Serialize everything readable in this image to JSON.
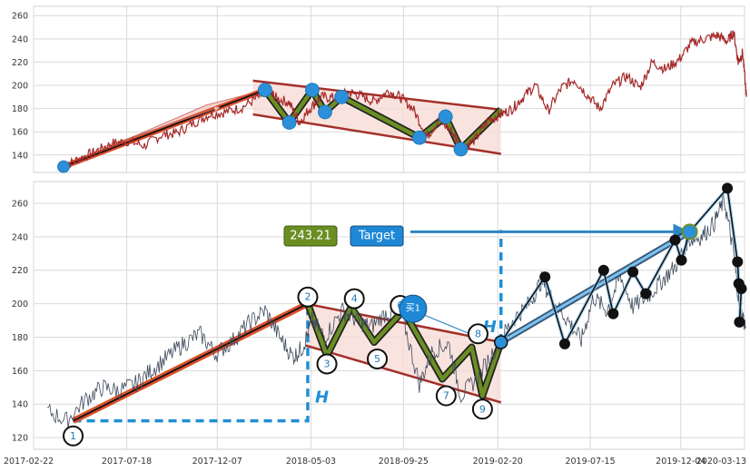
{
  "chart_data": [
    {
      "type": "line",
      "title": "",
      "xlabel": "",
      "ylabel": "",
      "ylim": [
        125,
        268
      ],
      "yticks": [
        140,
        160,
        180,
        200,
        220,
        240,
        260
      ],
      "grid": true,
      "series": [
        {
          "color": "#a52a2a",
          "x": [
            "2017-04-10",
            "2017-05-05",
            "2017-05-30",
            "2017-06-25",
            "2017-07-20",
            "2017-08-15",
            "2017-09-10",
            "2017-10-05",
            "2017-11-01",
            "2017-11-25",
            "2017-12-20",
            "2018-01-15",
            "2018-02-10",
            "2018-02-25",
            "2018-03-10",
            "2018-03-30",
            "2018-04-15",
            "2018-05-01",
            "2018-05-20",
            "2018-06-10",
            "2018-07-01",
            "2018-07-20",
            "2018-08-10",
            "2018-09-01",
            "2018-09-20",
            "2018-10-10",
            "2018-11-01",
            "2018-11-20",
            "2018-12-10",
            "2018-12-25",
            "2019-01-15",
            "2019-02-05",
            "2019-02-25",
            "2019-03-15",
            "2019-04-01",
            "2019-04-20",
            "2019-05-10",
            "2019-05-31",
            "2019-06-20",
            "2019-07-10",
            "2019-07-30",
            "2019-08-20",
            "2019-09-10",
            "2019-10-01",
            "2019-10-20",
            "2019-11-10",
            "2019-12-01",
            "2019-12-20",
            "2020-01-10",
            "2020-01-30",
            "2020-02-15",
            "2020-02-25",
            "2020-03-03",
            "2020-03-10",
            "2020-03-16"
          ],
          "y": [
            130,
            137,
            143,
            150,
            152,
            148,
            157,
            159,
            168,
            175,
            177,
            181,
            190,
            196,
            189,
            185,
            168,
            180,
            190,
            189,
            194,
            191,
            186,
            195,
            190,
            180,
            156,
            170,
            160,
            146,
            153,
            170,
            175,
            180,
            190,
            200,
            178,
            198,
            205,
            192,
            180,
            200,
            208,
            198,
            220,
            214,
            222,
            236,
            240,
            243,
            238,
            246,
            220,
            228,
            190
          ]
        }
      ],
      "annotations": {
        "points": [
          {
            "x": "2017-04-10",
            "y": 130
          },
          {
            "x": "2018-02-20",
            "y": 196
          },
          {
            "x": "2018-03-30",
            "y": 168
          },
          {
            "x": "2018-05-05",
            "y": 196
          },
          {
            "x": "2018-05-25",
            "y": 177
          },
          {
            "x": "2018-06-20",
            "y": 190
          },
          {
            "x": "2018-10-20",
            "y": 155
          },
          {
            "x": "2018-11-30",
            "y": 173
          },
          {
            "x": "2018-12-24",
            "y": 145
          }
        ],
        "upper_channel": [
          {
            "x": "2018-02-01",
            "y": 204
          },
          {
            "x": "2019-02-25",
            "y": 179
          }
        ],
        "lower_channel": [
          {
            "x": "2018-02-01",
            "y": 175
          },
          {
            "x": "2019-02-25",
            "y": 141
          }
        ]
      },
      "xlim": [
        "2017-02-22",
        "2020-03-13"
      ]
    },
    {
      "type": "line",
      "title": "",
      "xlabel": "",
      "ylabel": "",
      "ylim": [
        113,
        273
      ],
      "yticks": [
        120,
        140,
        160,
        180,
        200,
        220,
        240,
        260
      ],
      "xlim": [
        "2017-02-22",
        "2020-03-13"
      ],
      "xticks": [
        "2017-02-22",
        "2017-07-18",
        "2017-12-07",
        "2018-05-03",
        "2018-09-25",
        "2019-02-20",
        "2019-07-15",
        "2019-12-04",
        "2020-03-13"
      ],
      "grid": true,
      "series": [
        {
          "color": "#3c4a5c",
          "x": [
            "2017-03-15",
            "2017-04-15",
            "2017-05-15",
            "2017-06-10",
            "2017-07-05",
            "2017-08-01",
            "2017-08-25",
            "2017-09-20",
            "2017-10-15",
            "2017-11-10",
            "2017-12-05",
            "2018-01-01",
            "2018-01-25",
            "2018-02-20",
            "2018-03-15",
            "2018-04-05",
            "2018-04-20",
            "2018-05-05",
            "2018-05-25",
            "2018-06-20",
            "2018-07-15",
            "2018-08-05",
            "2018-08-30",
            "2018-09-25",
            "2018-10-20",
            "2018-11-10",
            "2018-12-05",
            "2018-12-24",
            "2019-01-20",
            "2019-02-20",
            "2019-03-15",
            "2019-04-10",
            "2019-04-30",
            "2019-05-20",
            "2019-06-10",
            "2019-07-01",
            "2019-07-20",
            "2019-08-10",
            "2019-08-31",
            "2019-09-20",
            "2019-10-15",
            "2019-11-05",
            "2019-11-25",
            "2019-12-15",
            "2020-01-05",
            "2020-01-25",
            "2020-02-10",
            "2020-02-25",
            "2020-03-05",
            "2020-03-15"
          ],
          "y": [
            136,
            130,
            143,
            150,
            148,
            152,
            160,
            168,
            176,
            182,
            170,
            178,
            188,
            196,
            180,
            168,
            174,
            190,
            180,
            196,
            190,
            186,
            195,
            190,
            152,
            172,
            176,
            145,
            156,
            176,
            190,
            200,
            214,
            200,
            190,
            178,
            204,
            196,
            216,
            198,
            205,
            214,
            222,
            238,
            240,
            248,
            262,
            230,
            198,
            186
          ]
        }
      ],
      "pattern_labels": [
        {
          "label": "1",
          "x": "2017-04-25",
          "y": 121
        },
        {
          "label": "2",
          "x": "2018-04-28",
          "y": 204
        },
        {
          "label": "3",
          "x": "2018-05-28",
          "y": 164
        },
        {
          "label": "4",
          "x": "2018-07-10",
          "y": 203
        },
        {
          "label": "5",
          "x": "2018-08-15",
          "y": 167
        },
        {
          "label": "6",
          "x": "2018-09-20",
          "y": 199
        },
        {
          "label": "7",
          "x": "2018-12-01",
          "y": 145
        },
        {
          "label": "8",
          "x": "2019-01-20",
          "y": 182
        },
        {
          "label": "9",
          "x": "2019-01-27",
          "y": 137
        }
      ],
      "upper_channel": [
        {
          "x": "2018-04-25",
          "y": 200
        },
        {
          "x": "2019-02-25",
          "y": 177
        }
      ],
      "lower_channel": [
        {
          "x": "2018-04-25",
          "y": 175
        },
        {
          "x": "2019-02-25",
          "y": 141
        }
      ],
      "impulse_line": [
        {
          "x": "2017-04-25",
          "y": 130
        },
        {
          "x": "2018-04-28",
          "y": 200
        }
      ],
      "zigzag": [
        {
          "x": "2018-04-28",
          "y": 200
        },
        {
          "x": "2018-05-28",
          "y": 169
        },
        {
          "x": "2018-07-05",
          "y": 198
        },
        {
          "x": "2018-08-10",
          "y": 177
        },
        {
          "x": "2018-09-25",
          "y": 196
        },
        {
          "x": "2018-11-25",
          "y": 155
        },
        {
          "x": "2019-01-10",
          "y": 174
        },
        {
          "x": "2019-01-27",
          "y": 145
        },
        {
          "x": "2019-02-25",
          "y": 177
        }
      ],
      "height_marker": {
        "from_y": 130,
        "to_y": 200,
        "x": "2018-04-28"
      },
      "breakout_marker": {
        "x": "2019-02-25",
        "from_y": 177,
        "to_y": 243
      },
      "target_value": "243.21",
      "target_label": "Target",
      "buy_label": "买1",
      "h_label": "H",
      "swing_points": [
        {
          "x": "2019-02-25",
          "y": 177
        },
        {
          "x": "2019-05-05",
          "y": 216
        },
        {
          "x": "2019-06-05",
          "y": 176
        },
        {
          "x": "2019-08-05",
          "y": 220
        },
        {
          "x": "2019-08-20",
          "y": 194
        },
        {
          "x": "2019-09-20",
          "y": 219
        },
        {
          "x": "2019-10-10",
          "y": 206
        },
        {
          "x": "2019-11-25",
          "y": 238
        },
        {
          "x": "2019-12-05",
          "y": 226
        },
        {
          "x": "2019-12-18",
          "y": 243
        },
        {
          "x": "2020-02-15",
          "y": 269
        },
        {
          "x": "2020-03-02",
          "y": 225
        },
        {
          "x": "2020-03-04",
          "y": 212
        },
        {
          "x": "2020-03-08",
          "y": 209
        },
        {
          "x": "2020-03-05",
          "y": 189
        }
      ],
      "projection_line": [
        {
          "x": "2019-02-25",
          "y": 177
        },
        {
          "x": "2019-12-18",
          "y": 243
        }
      ]
    }
  ]
}
